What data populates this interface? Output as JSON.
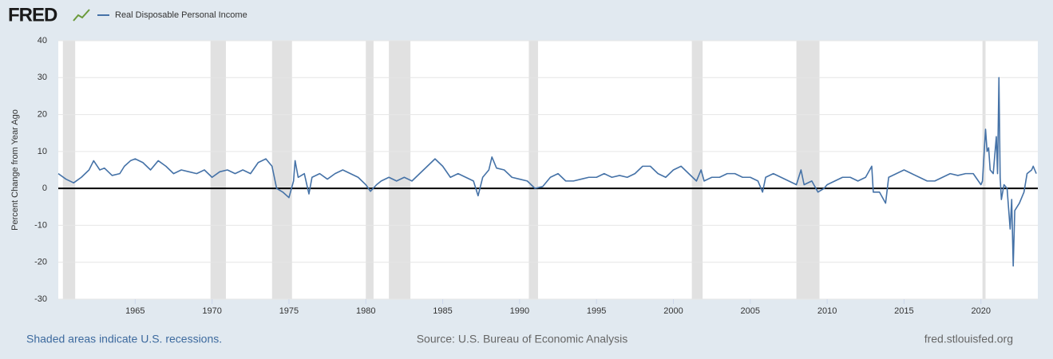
{
  "header": {
    "logo": "FRED"
  },
  "chart_data": {
    "type": "line",
    "y_label": "Percent Change from Year Ago",
    "x": [
      1960,
      1960.5,
      1961,
      1961.5,
      1962,
      1962.3,
      1962.7,
      1963,
      1963.5,
      1964,
      1964.3,
      1964.7,
      1965,
      1965.5,
      1966,
      1966.5,
      1967,
      1967.5,
      1968,
      1968.5,
      1969,
      1969.5,
      1970,
      1970.5,
      1971,
      1971.5,
      1972,
      1972.5,
      1973,
      1973.5,
      1973.9,
      1974.2,
      1974.6,
      1975,
      1975.3,
      1975.4,
      1975.6,
      1976,
      1976.3,
      1976.5,
      1977,
      1977.5,
      1978,
      1978.5,
      1979,
      1979.5,
      1980,
      1980.3,
      1980.7,
      1981,
      1981.5,
      1982,
      1982.5,
      1983,
      1983.5,
      1984,
      1984.5,
      1985,
      1985.5,
      1986,
      1986.5,
      1987,
      1987.3,
      1987.6,
      1988,
      1988.2,
      1988.5,
      1989,
      1989.5,
      1990,
      1990.5,
      1991,
      1991.5,
      1992,
      1992.5,
      1993,
      1993.5,
      1994,
      1994.5,
      1995,
      1995.5,
      1996,
      1996.5,
      1997,
      1997.5,
      1998,
      1998.5,
      1999,
      1999.5,
      2000,
      2000.5,
      2001,
      2001.5,
      2001.8,
      2002,
      2002.5,
      2003,
      2003.5,
      2004,
      2004.5,
      2005,
      2005.5,
      2005.8,
      2006,
      2006.5,
      2007,
      2007.5,
      2008,
      2008.3,
      2008.5,
      2009,
      2009.4,
      2009.8,
      2010,
      2010.5,
      2011,
      2011.5,
      2012,
      2012.5,
      2012.9,
      2013,
      2013.4,
      2013.8,
      2014,
      2014.5,
      2015,
      2015.5,
      2016,
      2016.5,
      2017,
      2017.5,
      2018,
      2018.5,
      2019,
      2019.5,
      2020,
      2020.1,
      2020.3,
      2020.4,
      2020.5,
      2020.6,
      2020.8,
      2021,
      2021.08,
      2021.17,
      2021.25,
      2021.33,
      2021.5,
      2021.7,
      2021.9,
      2022,
      2022.1,
      2022.2,
      2022.5,
      2022.8,
      2023,
      2023.3,
      2023.4,
      2023.6
    ],
    "series": [
      {
        "name": "Real Disposable Personal Income",
        "color": "#4572a7",
        "values": [
          4,
          2.5,
          1.5,
          3,
          5,
          7.5,
          5,
          5.5,
          3.5,
          4,
          6,
          7.5,
          8,
          7,
          5,
          7.5,
          6,
          4,
          5,
          4.5,
          4,
          5,
          3,
          4.5,
          5,
          4,
          5,
          4,
          7,
          8,
          6,
          0,
          -1,
          -2.5,
          2,
          7.5,
          3,
          4,
          -1.5,
          3,
          4,
          2.5,
          4,
          5,
          4,
          3,
          1,
          -0.8,
          1,
          2,
          3,
          2,
          3,
          2,
          4,
          6,
          8,
          6,
          3,
          4,
          3,
          2,
          -2,
          3,
          5,
          8.5,
          5.5,
          5,
          3,
          2.5,
          2,
          0,
          0.5,
          3,
          4,
          2,
          2,
          2.5,
          3,
          3,
          4,
          3,
          3.5,
          3,
          4,
          6,
          6,
          4,
          3,
          5,
          6,
          4,
          2,
          5,
          2,
          3,
          3,
          4,
          4,
          3,
          3,
          2,
          -1,
          3,
          4,
          3,
          2,
          1,
          5,
          1,
          2,
          -1,
          0,
          1,
          2,
          3,
          3,
          2,
          3,
          6,
          -1,
          -1,
          -4,
          3,
          4,
          5,
          4,
          3,
          2,
          2,
          3,
          4,
          3.5,
          4,
          4,
          1,
          2,
          16,
          10,
          11,
          5,
          4,
          14,
          4,
          30,
          3,
          -3,
          1,
          0,
          -11,
          -3,
          -21,
          -6,
          -4,
          -1,
          4,
          5,
          6,
          4
        ]
      }
    ],
    "recessions": [
      [
        1960.3,
        1961.1
      ],
      [
        1969.9,
        1970.9
      ],
      [
        1973.9,
        1975.2
      ],
      [
        1980.0,
        1980.5
      ],
      [
        1981.5,
        1982.9
      ],
      [
        1990.6,
        1991.2
      ],
      [
        2001.2,
        2001.9
      ],
      [
        2008.0,
        2009.5
      ],
      [
        2020.1,
        2020.3
      ]
    ],
    "recession_color": "#e1e1e1",
    "xlim": [
      1960,
      2023.7
    ],
    "ylim": [
      -30,
      40
    ],
    "xticks": [
      1965,
      1970,
      1975,
      1980,
      1985,
      1990,
      1995,
      2000,
      2005,
      2010,
      2015,
      2020
    ],
    "yticks": [
      -30,
      -20,
      -10,
      0,
      10,
      20,
      30,
      40
    ],
    "grid": true
  },
  "footer": {
    "note": "Shaded areas indicate U.S. recessions.",
    "source": "Source: U.S. Bureau of Economic Analysis",
    "site": "fred.stlouisfed.org"
  }
}
